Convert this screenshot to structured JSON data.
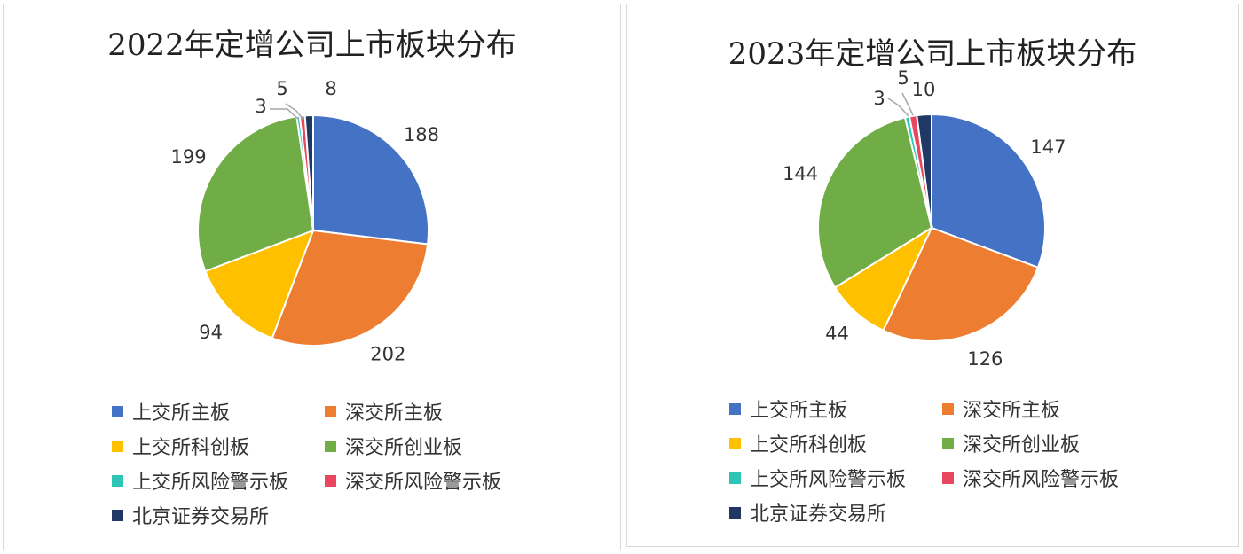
{
  "chart_data": [
    {
      "type": "pie",
      "title": "2022年定增公司上市板块分布",
      "categories": [
        "上交所主板",
        "深交所主板",
        "上交所科创板",
        "深交所创业板",
        "上交所风险警示板",
        "深交所风险警示板",
        "北京证券交易所"
      ],
      "values": [
        188,
        202,
        94,
        199,
        3,
        5,
        8
      ],
      "labels": [
        "188",
        "202",
        "94",
        "199",
        "3",
        "5",
        "8"
      ],
      "legend": "bottom"
    },
    {
      "type": "pie",
      "title": "2023年定增公司上市板块分布",
      "categories": [
        "上交所主板",
        "深交所主板",
        "上交所科创板",
        "深交所创业板",
        "上交所风险警示板",
        "深交所风险警示板",
        "北京证券交易所"
      ],
      "values": [
        147,
        126,
        44,
        144,
        3,
        5,
        10
      ],
      "labels": [
        "147",
        "126",
        "44",
        "144",
        "3",
        "5",
        "10"
      ],
      "legend": "bottom"
    }
  ],
  "colors": [
    "#4472C4",
    "#ED7D31",
    "#FFC000",
    "#70AD47",
    "#2EC4B6",
    "#E8475F",
    "#203864"
  ]
}
